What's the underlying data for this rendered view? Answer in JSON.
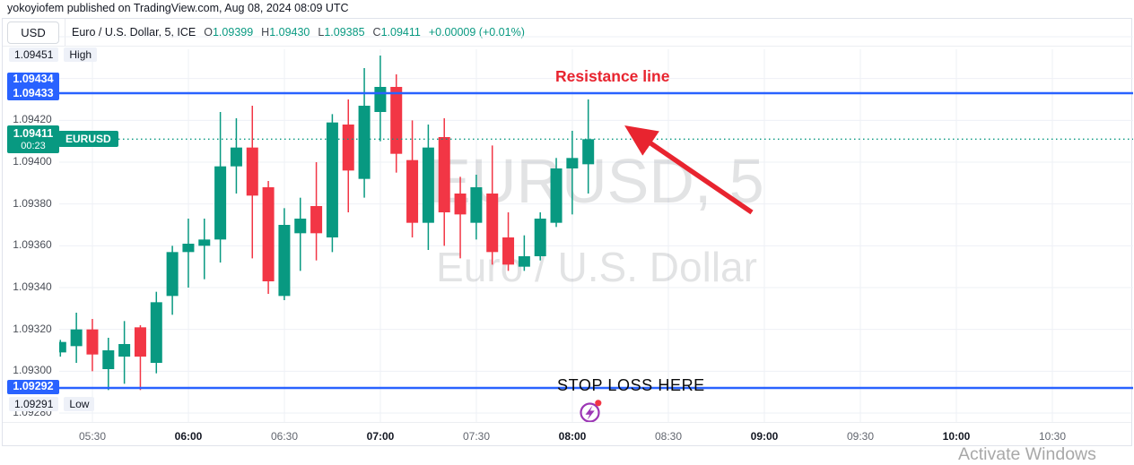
{
  "publish_bar": "yokoyiofem published on TradingView.com, Aug 08, 2024 08:09 UTC",
  "header": {
    "currency_button": "USD",
    "symbol_title": "Euro / U.S. Dollar, 5, ICE",
    "ohlc": [
      {
        "label": "O",
        "value": "1.09399"
      },
      {
        "label": "H",
        "value": "1.09430"
      },
      {
        "label": "L",
        "value": "1.09385"
      },
      {
        "label": "C",
        "value": "1.09411"
      }
    ],
    "change": "+0.00009 (+0.01%)"
  },
  "price_scale": {
    "high_row": {
      "price": "1.09451",
      "label": "High"
    },
    "resistance_badge": [
      "1.09434",
      "1.09433"
    ],
    "current_badge": {
      "price": "1.09411",
      "countdown": "00:23",
      "symbol": "EURUSD"
    },
    "stoploss_badge": "1.09292",
    "low_row": {
      "price": "1.09291",
      "label": "Low"
    },
    "gridline_labels": [
      "1.09420",
      "1.09400",
      "1.09380",
      "1.09360",
      "1.09340",
      "1.09320",
      "1.09300",
      "1.09280"
    ]
  },
  "time_axis": [
    {
      "label": "05:30",
      "major": false
    },
    {
      "label": "06:00",
      "major": true
    },
    {
      "label": "06:30",
      "major": false
    },
    {
      "label": "07:00",
      "major": true
    },
    {
      "label": "07:30",
      "major": false
    },
    {
      "label": "08:00",
      "major": true
    },
    {
      "label": "08:30",
      "major": false
    },
    {
      "label": "09:00",
      "major": true
    },
    {
      "label": "09:30",
      "major": false
    },
    {
      "label": "10:00",
      "major": true
    },
    {
      "label": "10:30",
      "major": false
    }
  ],
  "annotations": {
    "resistance_text": "Resistance line",
    "stoploss_text": "STOP LOSS HERE"
  },
  "watermark": {
    "title": "EURUSD, 5",
    "subtitle": "Euro / U.S. Dollar"
  },
  "os_overlay": "Activate Windows",
  "colors": {
    "up": "#089981",
    "down": "#f23645",
    "line_blue": "#2962ff",
    "annotation_red": "#e8242f",
    "flash_purple": "#9c36b5",
    "grid": "#eef0f6"
  },
  "chart_data": {
    "type": "candlestick",
    "symbol": "EURUSD",
    "timeframe_minutes": 5,
    "levels": {
      "resistance": 1.09433,
      "stop_loss": 1.09292,
      "last_price": 1.09411,
      "session_high": 1.09451,
      "session_low": 1.09291
    },
    "ylim": [
      1.09276,
      1.0946
    ],
    "x_times": [
      "05:20",
      "05:25",
      "05:30",
      "05:35",
      "05:40",
      "05:45",
      "05:50",
      "05:55",
      "06:00",
      "06:05",
      "06:10",
      "06:15",
      "06:20",
      "06:25",
      "06:30",
      "06:35",
      "06:40",
      "06:45",
      "06:50",
      "06:55",
      "07:00",
      "07:05",
      "07:10",
      "07:15",
      "07:20",
      "07:25",
      "07:30",
      "07:35",
      "07:40",
      "07:45",
      "07:50",
      "07:55",
      "08:00",
      "08:05"
    ],
    "ohlc": [
      [
        1.09309,
        1.09315,
        1.09307,
        1.09314
      ],
      [
        1.09312,
        1.09328,
        1.09304,
        1.0932
      ],
      [
        1.0932,
        1.09325,
        1.093,
        1.09308
      ],
      [
        1.09301,
        1.09316,
        1.09291,
        1.0931
      ],
      [
        1.09307,
        1.09324,
        1.09294,
        1.09313
      ],
      [
        1.09321,
        1.09322,
        1.09291,
        1.09307
      ],
      [
        1.09304,
        1.09338,
        1.09299,
        1.09333
      ],
      [
        1.09336,
        1.0936,
        1.09327,
        1.09357
      ],
      [
        1.09357,
        1.09373,
        1.0934,
        1.09361
      ],
      [
        1.0936,
        1.09373,
        1.09344,
        1.09363
      ],
      [
        1.09363,
        1.09424,
        1.09352,
        1.09398
      ],
      [
        1.09398,
        1.09421,
        1.09385,
        1.09407
      ],
      [
        1.09407,
        1.09427,
        1.09354,
        1.09384
      ],
      [
        1.09388,
        1.09391,
        1.09337,
        1.09343
      ],
      [
        1.09336,
        1.09378,
        1.09334,
        1.0937
      ],
      [
        1.09366,
        1.09383,
        1.09348,
        1.09373
      ],
      [
        1.09379,
        1.094,
        1.09353,
        1.09366
      ],
      [
        1.09364,
        1.09423,
        1.09357,
        1.09419
      ],
      [
        1.09418,
        1.0943,
        1.09376,
        1.09396
      ],
      [
        1.09392,
        1.09445,
        1.09383,
        1.09427
      ],
      [
        1.09424,
        1.09451,
        1.0941,
        1.09436
      ],
      [
        1.09436,
        1.09442,
        1.09395,
        1.09404
      ],
      [
        1.09401,
        1.0942,
        1.09364,
        1.09371
      ],
      [
        1.09371,
        1.09418,
        1.09358,
        1.09407
      ],
      [
        1.09412,
        1.09421,
        1.0936,
        1.09376
      ],
      [
        1.09385,
        1.09393,
        1.09354,
        1.09375
      ],
      [
        1.09371,
        1.09394,
        1.09363,
        1.09388
      ],
      [
        1.09385,
        1.09408,
        1.09351,
        1.09357
      ],
      [
        1.09364,
        1.09376,
        1.09348,
        1.09351
      ],
      [
        1.0935,
        1.09365,
        1.09348,
        1.09355
      ],
      [
        1.09355,
        1.09376,
        1.09353,
        1.09373
      ],
      [
        1.09371,
        1.09402,
        1.09369,
        1.09397
      ],
      [
        1.09397,
        1.09415,
        1.09375,
        1.09402
      ],
      [
        1.09399,
        1.0943,
        1.09385,
        1.09411
      ]
    ]
  }
}
